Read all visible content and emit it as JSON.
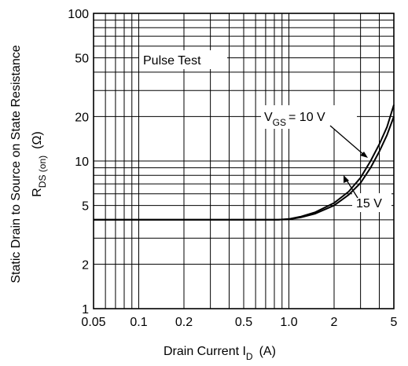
{
  "chart_data": {
    "type": "line",
    "xscale": "log",
    "yscale": "log",
    "xlim": [
      0.05,
      5
    ],
    "ylim": [
      1,
      100
    ],
    "grid": true,
    "x_tick_labels": [
      {
        "value": 0.05,
        "label": "0.05"
      },
      {
        "value": 0.1,
        "label": "0.1"
      },
      {
        "value": 0.2,
        "label": "0.2"
      },
      {
        "value": 0.5,
        "label": "0.5"
      },
      {
        "value": 1,
        "label": "1.0"
      },
      {
        "value": 2,
        "label": "2"
      },
      {
        "value": 5,
        "label": "5"
      }
    ],
    "y_tick_labels": [
      {
        "value": 1,
        "label": "1"
      },
      {
        "value": 2,
        "label": "2"
      },
      {
        "value": 5,
        "label": "5"
      },
      {
        "value": 10,
        "label": "10"
      },
      {
        "value": 20,
        "label": "20"
      },
      {
        "value": 50,
        "label": "50"
      },
      {
        "value": 100,
        "label": "100"
      }
    ],
    "xlabel": {
      "main": "Drain Current  I",
      "sub": "D",
      "unit": "(A)"
    },
    "ylabel": {
      "line1": "Static Drain to Source on State Resistance",
      "main": "R",
      "sub": "DS (on)",
      "unit": "(Ω)"
    },
    "annotations": {
      "pulse_test": "Pulse Test",
      "vgs_prefix": "V",
      "vgs_sub": "GS",
      "vgs_value": "= 10 V",
      "vgs15": "15 V"
    },
    "series": [
      {
        "x": [
          0.05,
          0.1,
          0.2,
          0.5,
          0.7,
          0.85,
          1.0,
          1.2,
          1.5,
          2.0,
          2.5,
          3.0,
          3.5,
          4.0,
          4.5,
          5.0
        ],
        "y": [
          4.0,
          4.0,
          4.0,
          4.0,
          4.0,
          4.0,
          4.05,
          4.2,
          4.5,
          5.2,
          6.2,
          7.7,
          10.0,
          13.0,
          17.0,
          24.0
        ]
      },
      {
        "x": [
          0.05,
          0.1,
          0.2,
          0.5,
          0.7,
          0.85,
          1.0,
          1.2,
          1.5,
          2.0,
          2.5,
          3.0,
          3.5,
          4.0,
          4.5,
          5.0
        ],
        "y": [
          4.0,
          4.0,
          4.0,
          4.0,
          4.0,
          4.0,
          4.03,
          4.15,
          4.4,
          5.0,
          5.9,
          7.1,
          9.0,
          11.6,
          15.0,
          20.0
        ]
      }
    ]
  }
}
